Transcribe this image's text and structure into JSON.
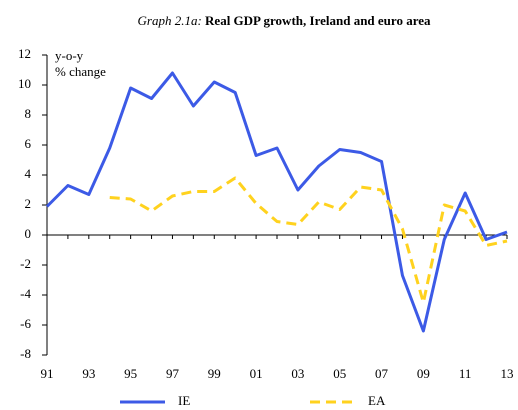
{
  "chart_data": {
    "type": "line",
    "title_prefix": "Graph 2.1a:",
    "title": "Real GDP growth, Ireland and euro area",
    "ylabel": [
      "y-o-y",
      "% change"
    ],
    "categories": [
      "91",
      null,
      "93",
      null,
      "95",
      null,
      "97",
      null,
      "99",
      null,
      "01",
      null,
      "03",
      null,
      "05",
      null,
      "07",
      null,
      "09",
      null,
      "11",
      null,
      "13"
    ],
    "series": [
      {
        "name": "IE",
        "color": "#3c5ae6",
        "dashed": false,
        "values": [
          1.9,
          3.3,
          2.7,
          5.8,
          9.8,
          9.1,
          10.8,
          8.6,
          10.2,
          9.5,
          5.3,
          5.8,
          3.0,
          4.6,
          5.7,
          5.5,
          4.9,
          -2.7,
          -6.4,
          -0.3,
          2.8,
          -0.3,
          0.2
        ]
      },
      {
        "name": "EA",
        "color": "#ffd21e",
        "dashed": true,
        "values": [
          null,
          null,
          null,
          2.5,
          2.4,
          1.6,
          2.6,
          2.9,
          2.9,
          3.8,
          2.1,
          0.9,
          0.7,
          2.2,
          1.7,
          3.2,
          3.0,
          0.4,
          -4.5,
          2.0,
          1.6,
          -0.7,
          -0.4
        ]
      }
    ],
    "ylim": [
      -8,
      12
    ],
    "yticks": [
      -8,
      -6,
      -4,
      -2,
      0,
      2,
      4,
      6,
      8,
      10,
      12
    ],
    "grid": false,
    "legend": "bottom"
  }
}
